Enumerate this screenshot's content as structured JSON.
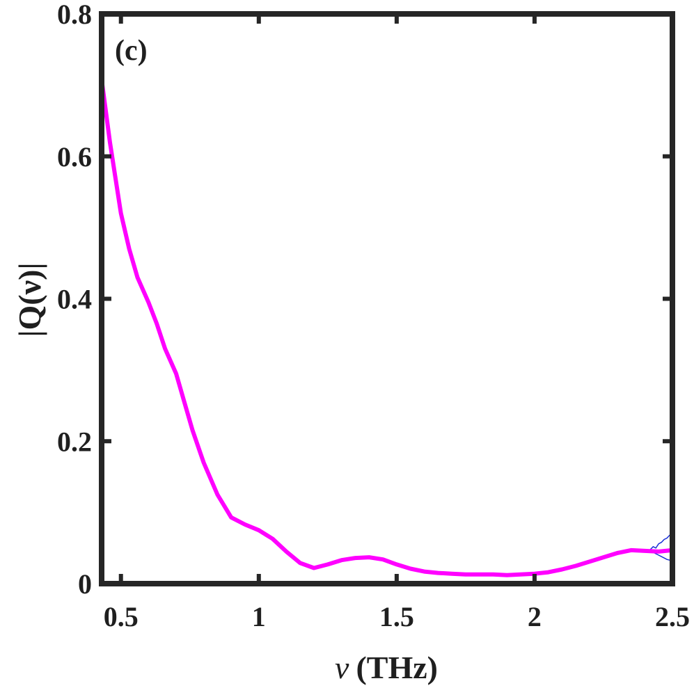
{
  "chart_data": {
    "type": "line",
    "panel_label": "(c)",
    "xlabel_symbol": "ν",
    "xlabel_unit": "(THz)",
    "ylabel": "|Q(ν)|",
    "xlim": [
      0.43,
      2.5
    ],
    "ylim": [
      0,
      0.8
    ],
    "xticks": [
      {
        "value": 0.5,
        "label": "0.5"
      },
      {
        "value": 1,
        "label": "1"
      },
      {
        "value": 1.5,
        "label": "1.5"
      },
      {
        "value": 2,
        "label": "2"
      },
      {
        "value": 2.5,
        "label": "2.5"
      }
    ],
    "yticks": [
      {
        "value": 0,
        "label": "0"
      },
      {
        "value": 0.2,
        "label": "0.2"
      },
      {
        "value": 0.4,
        "label": "0.4"
      },
      {
        "value": 0.6,
        "label": "0.6"
      },
      {
        "value": 0.8,
        "label": "0.8"
      }
    ],
    "grid": false,
    "series": [
      {
        "color": "#ff00ff",
        "x": [
          0.43,
          0.46,
          0.5,
          0.53,
          0.56,
          0.6,
          0.63,
          0.66,
          0.7,
          0.73,
          0.76,
          0.8,
          0.85,
          0.9,
          0.95,
          1.0,
          1.05,
          1.1,
          1.15,
          1.2,
          1.25,
          1.3,
          1.35,
          1.4,
          1.45,
          1.5,
          1.55,
          1.6,
          1.65,
          1.7,
          1.75,
          1.8,
          1.85,
          1.9,
          1.95,
          2.0,
          2.05,
          2.1,
          2.15,
          2.2,
          2.25,
          2.3,
          2.35,
          2.4,
          2.45,
          2.5
        ],
        "y": [
          0.708,
          0.62,
          0.52,
          0.47,
          0.43,
          0.395,
          0.365,
          0.33,
          0.295,
          0.255,
          0.215,
          0.17,
          0.125,
          0.093,
          0.083,
          0.075,
          0.063,
          0.045,
          0.029,
          0.022,
          0.027,
          0.033,
          0.036,
          0.037,
          0.034,
          0.027,
          0.021,
          0.017,
          0.015,
          0.014,
          0.013,
          0.013,
          0.013,
          0.012,
          0.013,
          0.014,
          0.016,
          0.02,
          0.025,
          0.031,
          0.037,
          0.043,
          0.047,
          0.046,
          0.045,
          0.047
        ]
      },
      {
        "color": "#1a2fd6",
        "x": [
          2.42,
          2.43,
          2.44,
          2.45,
          2.46,
          2.47,
          2.48,
          2.49,
          2.5
        ],
        "y_upper": [
          0.048,
          0.052,
          0.05,
          0.056,
          0.058,
          0.062,
          0.064,
          0.068,
          0.071
        ],
        "y_lower": [
          0.046,
          0.044,
          0.042,
          0.04,
          0.038,
          0.036,
          0.034,
          0.033,
          0.031
        ]
      }
    ]
  }
}
